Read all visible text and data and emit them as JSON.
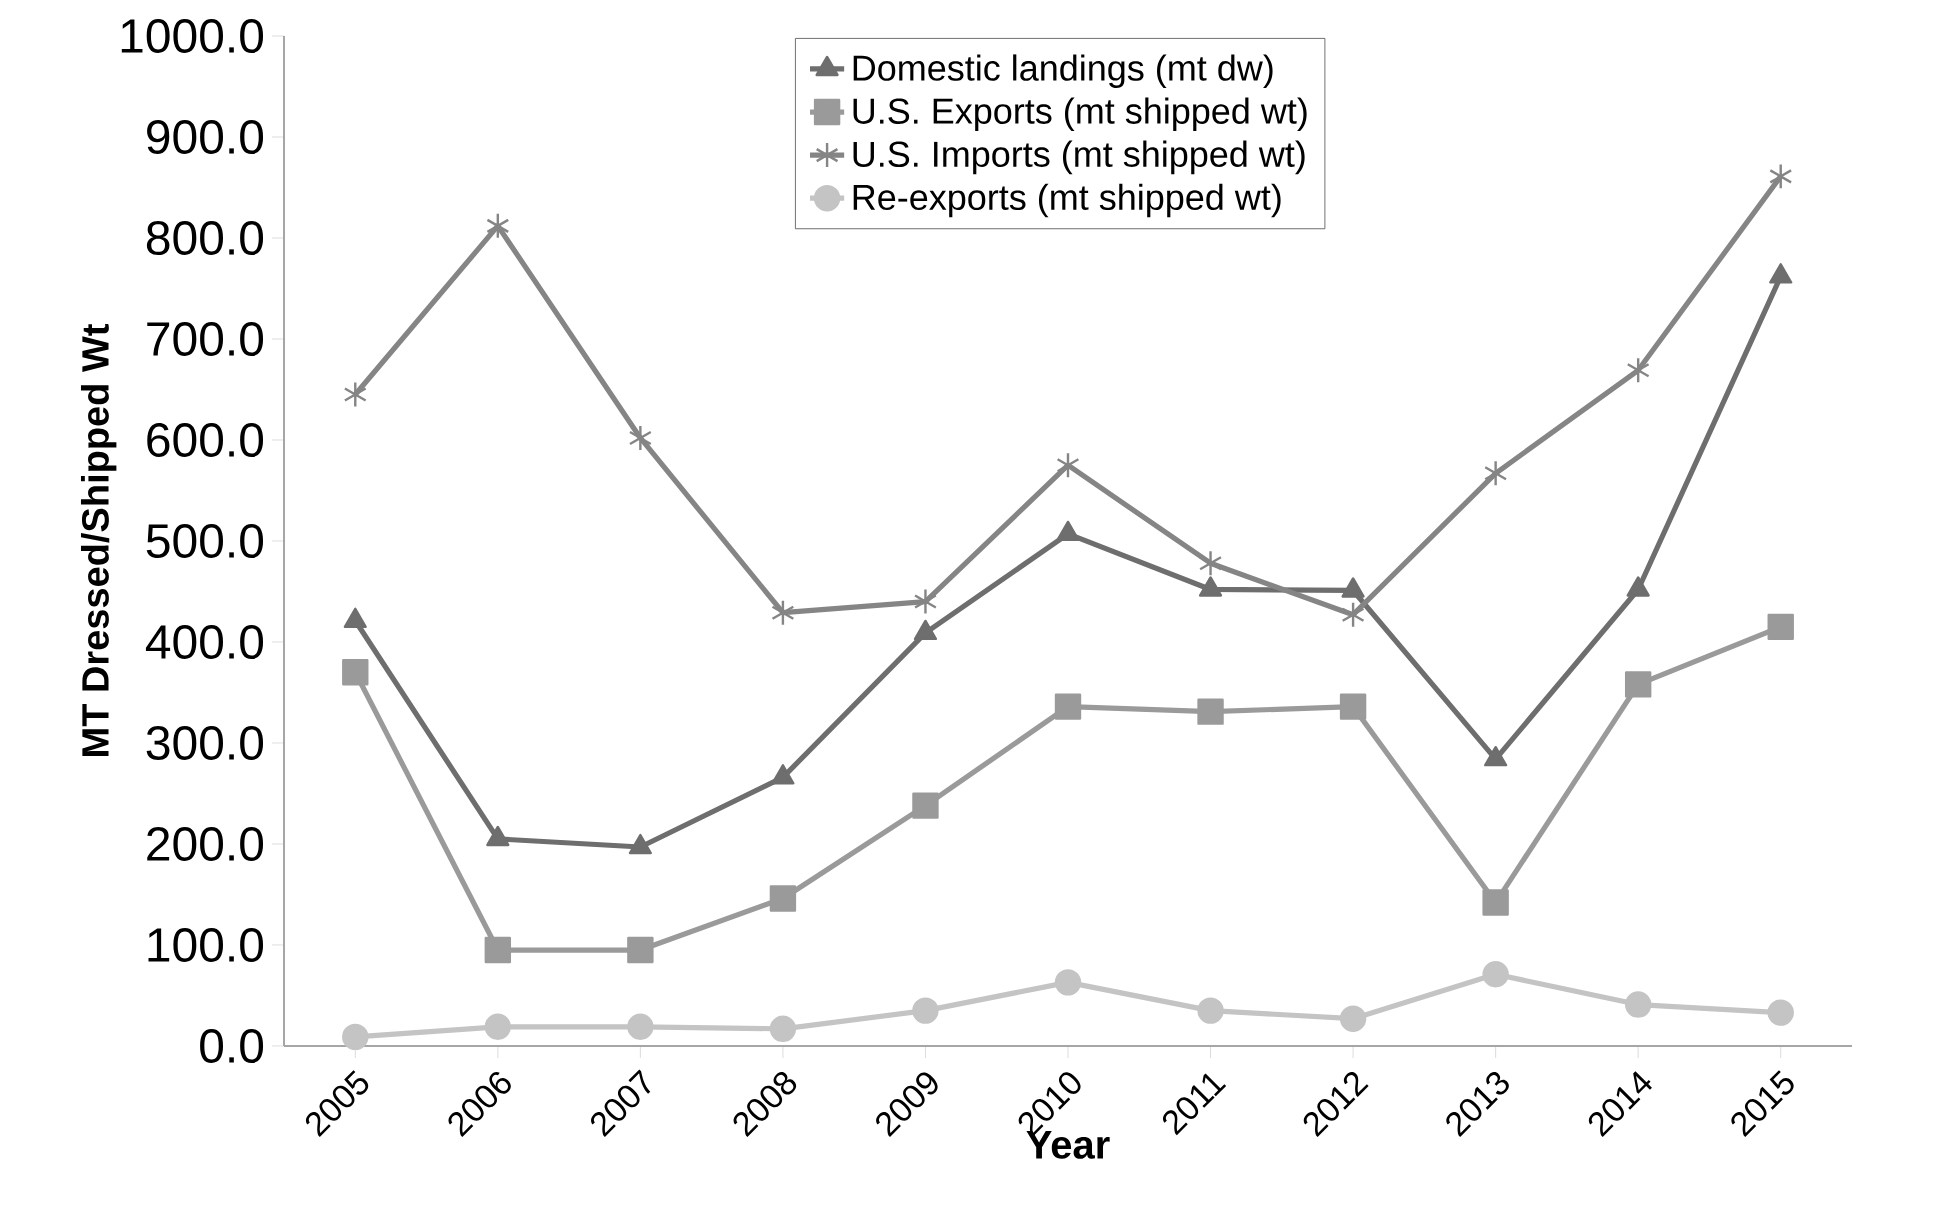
{
  "chart_data": {
    "type": "line",
    "xlabel": "Year",
    "ylabel": "MT Dressed/Shipped Wt",
    "categories": [
      "2005",
      "2006",
      "2007",
      "2008",
      "2009",
      "2010",
      "2011",
      "2012",
      "2013",
      "2014",
      "2015"
    ],
    "ylim": [
      0,
      1000
    ],
    "yticks": [
      {
        "value": 0,
        "label": "0.0"
      },
      {
        "value": 100,
        "label": "100.0"
      },
      {
        "value": 200,
        "label": "200.0"
      },
      {
        "value": 300,
        "label": "300.0"
      },
      {
        "value": 400,
        "label": "400.0"
      },
      {
        "value": 500,
        "label": "500.0"
      },
      {
        "value": 600,
        "label": "600.0"
      },
      {
        "value": 700,
        "label": "700.0"
      },
      {
        "value": 800,
        "label": "800.0"
      },
      {
        "value": 900,
        "label": "900.0"
      },
      {
        "value": 1000,
        "label": "1000.0"
      }
    ],
    "grid": false,
    "legend": "top",
    "line_style": "solid",
    "series": [
      {
        "name": "Domestic landings (mt dw)",
        "color": "#6e6e6e",
        "marker": "triangle",
        "values": [
          421,
          205,
          197,
          266,
          409,
          507,
          452,
          451,
          284,
          452,
          762
        ]
      },
      {
        "name": "U.S. Exports (mt shipped wt)",
        "color": "#9a9a9a",
        "marker": "square",
        "values": [
          370,
          95,
          95,
          146,
          238,
          336,
          331,
          336,
          142,
          358,
          415
        ]
      },
      {
        "name": "U.S. Imports (mt shipped wt)",
        "color": "#858585",
        "marker": "cross",
        "values": [
          645,
          812,
          602,
          429,
          440,
          575,
          478,
          427,
          567,
          669,
          861
        ]
      },
      {
        "name": "Re-exports (mt shipped wt)",
        "color": "#c4c4c4",
        "marker": "circle",
        "values": [
          9,
          19,
          19,
          17,
          35,
          63,
          35,
          27,
          71,
          41,
          33
        ]
      }
    ]
  }
}
